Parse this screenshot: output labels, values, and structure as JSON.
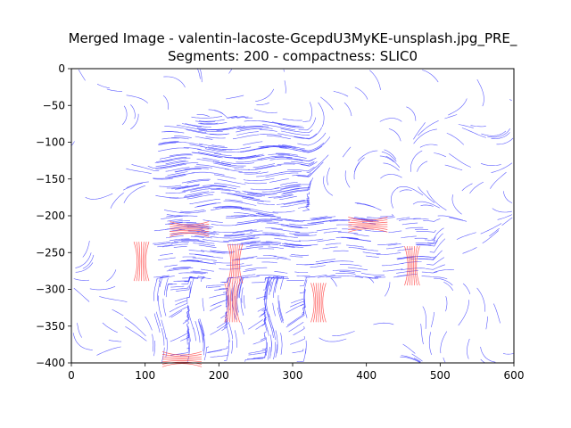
{
  "chart_data": {
    "type": "streamplot",
    "title_lines": [
      "Merged Image - valentin-lacoste-GcepdU3MyKE-unsplash.jpg_PRE_",
      "Segments: 200 - compactness: SLIC0"
    ],
    "xlabel": "",
    "ylabel": "",
    "xlim": [
      0,
      600
    ],
    "ylim": [
      -400,
      0
    ],
    "xticks": [
      "0",
      "100",
      "200",
      "300",
      "400",
      "500",
      "600"
    ],
    "yticks": [
      "0",
      "−50",
      "−100",
      "−150",
      "−200",
      "−250",
      "−300",
      "−350",
      "−400"
    ],
    "grid": false,
    "colors": {
      "low": "#4040ff",
      "high": "#ff4040"
    },
    "dense_region": {
      "x": [
        110,
        320
      ],
      "y": [
        -240,
        -65
      ]
    },
    "band_region": {
      "x": [
        110,
        490
      ],
      "y": [
        -285,
        -200
      ]
    },
    "hotspots": [
      {
        "x": 160,
        "y": -218,
        "dir": "h"
      },
      {
        "x": 402,
        "y": -212,
        "dir": "h"
      },
      {
        "x": 222,
        "y": -265,
        "dir": "v"
      },
      {
        "x": 218,
        "y": -318,
        "dir": "v"
      },
      {
        "x": 335,
        "y": -318,
        "dir": "v"
      },
      {
        "x": 462,
        "y": -268,
        "dir": "v"
      },
      {
        "x": 95,
        "y": -262,
        "dir": "v"
      },
      {
        "x": 150,
        "y": -395,
        "dir": "h"
      }
    ]
  }
}
